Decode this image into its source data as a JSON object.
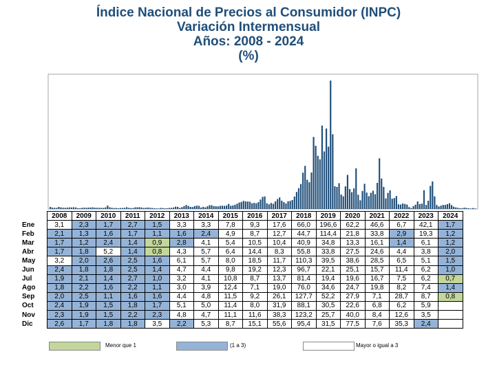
{
  "titles": {
    "line1": "Índice Nacional de Precios al Consumidor (INPC)",
    "line2": "Variación Intermensual",
    "line3": "Años: 2008 - 2024",
    "line4": "(%)"
  },
  "colors": {
    "bars": "#1f4e79",
    "low": "#c3d69b",
    "mid": "#95b3d7",
    "high": "#ffffff",
    "title": "#1f4e79"
  },
  "legend": {
    "low_label": "Menor que 1",
    "mid_label": "(1 a 3)",
    "high_label": "Mayor o igual a 3"
  },
  "chart_data": {
    "type": "bar",
    "categories_note": "",
    "years": [
      "2008",
      "2009",
      "2010",
      "2011",
      "2012",
      "2013",
      "2014",
      "2015",
      "2016",
      "2017",
      "2018",
      "2019",
      "2020",
      "2021",
      "2022",
      "2023",
      "2024"
    ],
    "months": [
      "Ene",
      "Feb",
      "Mar",
      "Abr",
      "May",
      "Jun",
      "Jul",
      "Ago",
      "Sep",
      "Oct",
      "Nov",
      "Dic"
    ],
    "values": [
      [
        "3,1",
        "2,1",
        "1,7",
        "1,7",
        "3,2",
        "2,4",
        "1,9",
        "1,8",
        "2,0",
        "2,4",
        "2,3",
        "2,6"
      ],
      [
        "2,3",
        "1,3",
        "1,2",
        "1,8",
        "2,0",
        "1,8",
        "2,1",
        "2,2",
        "2,5",
        "1,9",
        "1,9",
        "1,7"
      ],
      [
        "1,7",
        "1,6",
        "2,4",
        "5,2",
        "2,6",
        "1,8",
        "1,4",
        "1,6",
        "1,1",
        "1,5",
        "1,5",
        "1,8"
      ],
      [
        "2,7",
        "1,7",
        "1,4",
        "1,4",
        "2,5",
        "2,5",
        "2,7",
        "2,2",
        "1,6",
        "1,8",
        "2,2",
        "1,8"
      ],
      [
        "1,5",
        "1,1",
        "0,9",
        "0,8",
        "1,6",
        "1,4",
        "1,0",
        "1,1",
        "1,6",
        "1,7",
        "2,3",
        "3,5"
      ],
      [
        "3,3",
        "1,6",
        "2,8",
        "4,3",
        "6,1",
        "4,7",
        "3,2",
        "3,0",
        "4,4",
        "5,1",
        "4,8",
        "2,2"
      ],
      [
        "3,3",
        "2,4",
        "4,1",
        "5,7",
        "5,7",
        "4,4",
        "4,1",
        "3,9",
        "4,8",
        "5,0",
        "4,7",
        "5,3"
      ],
      [
        "7,8",
        "4,9",
        "5,4",
        "6,4",
        "8,0",
        "9,8",
        "10,8",
        "12,4",
        "11,5",
        "11,4",
        "11,1",
        "8,7"
      ],
      [
        "9,3",
        "8,7",
        "10,5",
        "14,4",
        "18,5",
        "19,2",
        "8,7",
        "7,1",
        "9,2",
        "8,0",
        "11,6",
        "15,1"
      ],
      [
        "17,6",
        "12,7",
        "10,4",
        "8,3",
        "11,7",
        "12,3",
        "13,7",
        "19,0",
        "26,1",
        "31,9",
        "38,3",
        "55,6"
      ],
      [
        "66,0",
        "44,7",
        "40,9",
        "55,8",
        "110,3",
        "96,7",
        "81,4",
        "76,0",
        "127,7",
        "88,1",
        "123,2",
        "95,4"
      ],
      [
        "196,6",
        "114,4",
        "34,8",
        "33,8",
        "39,5",
        "22,1",
        "19,4",
        "34,6",
        "52,2",
        "30,5",
        "25,7",
        "31,5"
      ],
      [
        "62,2",
        "21,8",
        "13,3",
        "27,5",
        "38,6",
        "25,1",
        "19,6",
        "24,7",
        "27,9",
        "22,6",
        "40,0",
        "77,5"
      ],
      [
        "46,6",
        "33,8",
        "16,1",
        "24,6",
        "28,5",
        "15,7",
        "16,7",
        "19,8",
        "7,1",
        "6,8",
        "8,4",
        "7,6"
      ],
      [
        "6,7",
        "2,9",
        "1,4",
        "4,4",
        "6,5",
        "11,4",
        "7,5",
        "8,2",
        "28,7",
        "6,2",
        "12,6",
        "35,3"
      ],
      [
        "42,1",
        "19,3",
        "6,1",
        "3,8",
        "5,1",
        "6,2",
        "6,2",
        "7,4",
        "8,7",
        "5,9",
        "3,5",
        "2,4"
      ],
      [
        "1,7",
        "1,2",
        "1,2",
        "2,0",
        "1,5",
        "1,0",
        "0,7",
        "1,4",
        "0,8",
        "",
        "",
        ""
      ]
    ],
    "ylim": [
      0,
      200
    ],
    "grid": false,
    "legend_position": "bottom"
  }
}
